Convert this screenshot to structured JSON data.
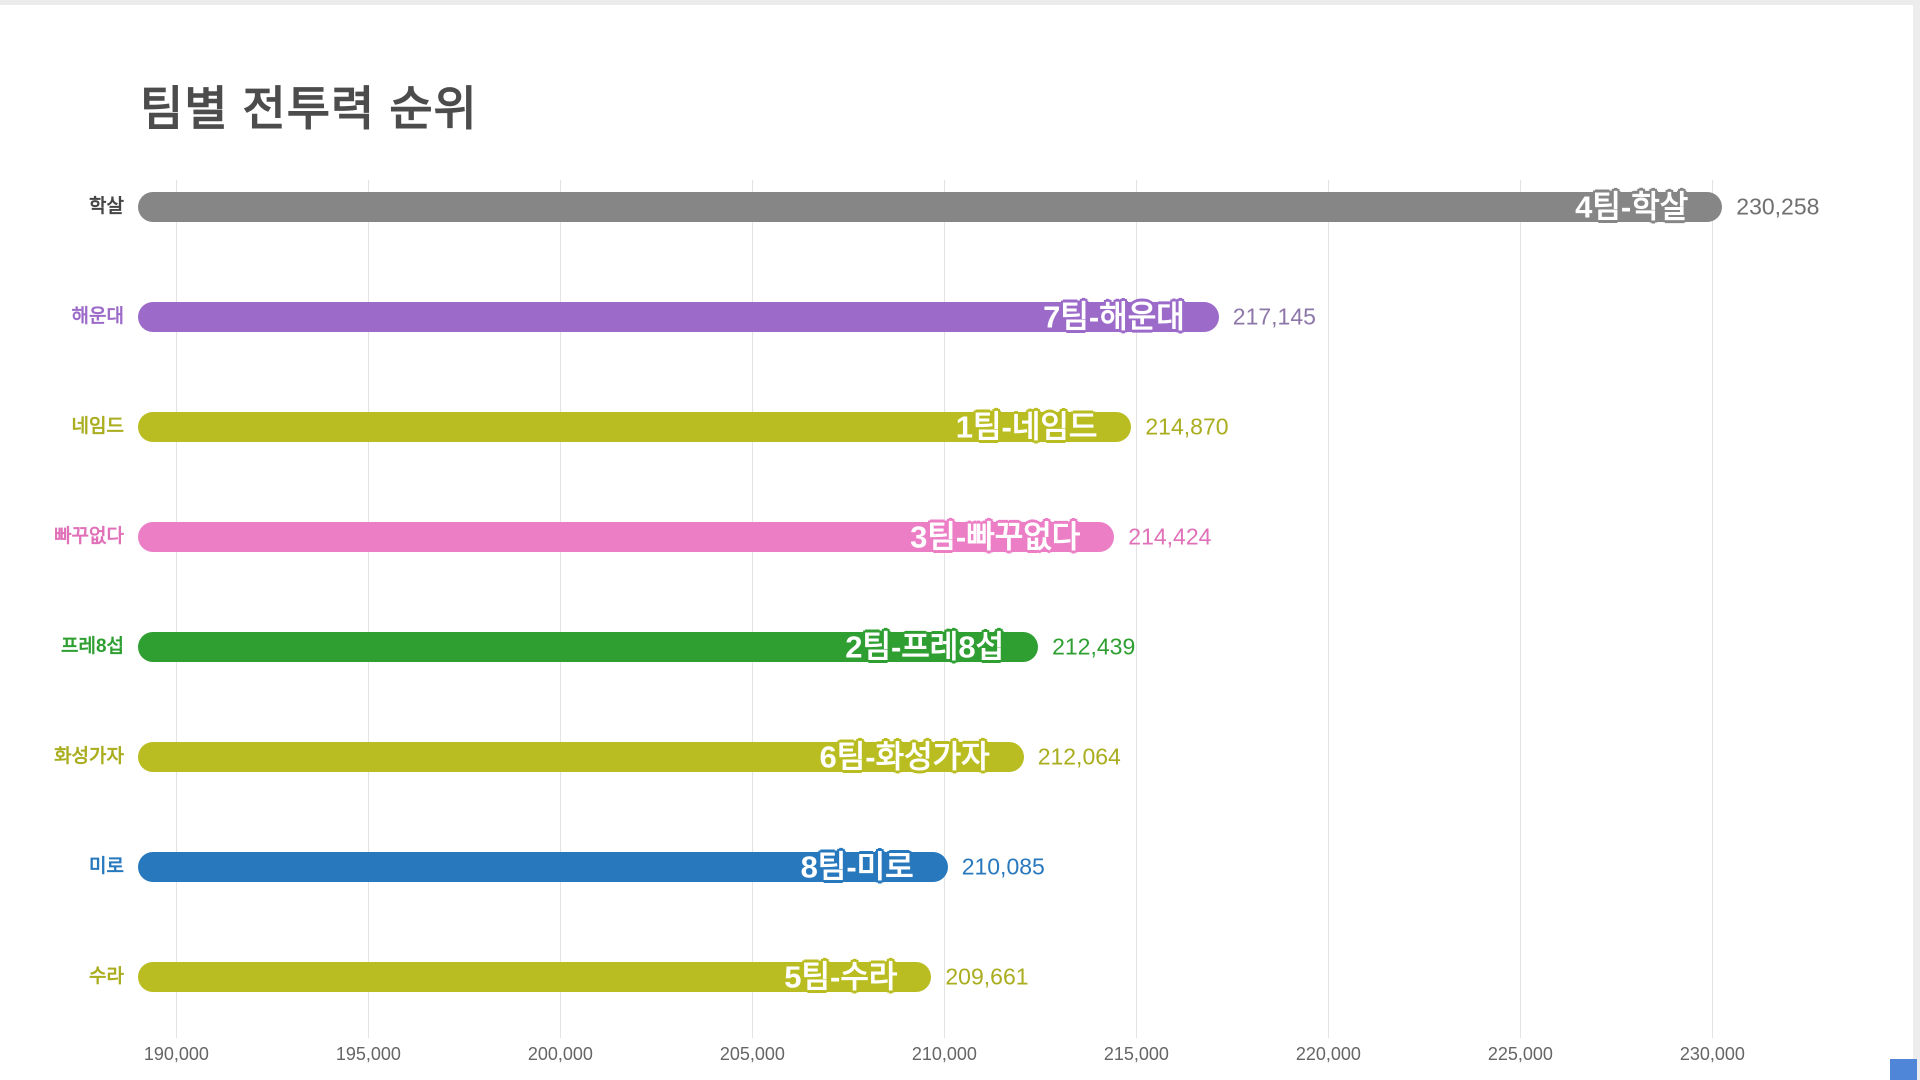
{
  "title": "팀별 전투력 순위",
  "chart_data": {
    "type": "bar",
    "orientation": "horizontal",
    "title": "팀별 전투력 순위",
    "grid": true,
    "x_axis": {
      "min": 189000,
      "max": 232000,
      "ticks": [
        190000,
        195000,
        200000,
        205000,
        210000,
        215000,
        220000,
        225000,
        230000
      ],
      "tick_labels": [
        "190,000",
        "195,000",
        "200,000",
        "205,000",
        "210,000",
        "215,000",
        "220,000",
        "225,000",
        "230,000"
      ]
    },
    "bars": [
      {
        "category": "학살",
        "bar_label": "4팀-학살",
        "value": 230258,
        "value_label": "230,258",
        "color": "#868686",
        "text_color": "#6f6f6f",
        "category_color": "#454545"
      },
      {
        "category": "해운대",
        "bar_label": "7팀-해운대",
        "value": 217145,
        "value_label": "217,145",
        "color": "#9c6bc9",
        "text_color": "#8d77a9",
        "category_color": "#9c6bc9"
      },
      {
        "category": "네임드",
        "bar_label": "1팀-네임드",
        "value": 214870,
        "value_label": "214,870",
        "color": "#b9bd21",
        "text_color": "#a9ad1e",
        "category_color": "#a9ad1e"
      },
      {
        "category": "빠꾸없다",
        "bar_label": "3팀-빠꾸없다",
        "value": 214424,
        "value_label": "214,424",
        "color": "#ec7ec6",
        "text_color": "#e070b8",
        "category_color": "#e070b8"
      },
      {
        "category": "프레8섭",
        "bar_label": "2팀-프레8섭",
        "value": 212439,
        "value_label": "212,439",
        "color": "#2f9f32",
        "text_color": "#2f9f32",
        "category_color": "#2f9f32"
      },
      {
        "category": "화성가자",
        "bar_label": "6팀-화성가자",
        "value": 212064,
        "value_label": "212,064",
        "color": "#b9bd21",
        "text_color": "#a9ad1e",
        "category_color": "#a9ad1e"
      },
      {
        "category": "미로",
        "bar_label": "8팀-미로",
        "value": 210085,
        "value_label": "210,085",
        "color": "#2878bd",
        "text_color": "#2878bd",
        "category_color": "#2878bd"
      },
      {
        "category": "수라",
        "bar_label": "5팀-수라",
        "value": 209661,
        "value_label": "209,661",
        "color": "#b9bd21",
        "text_color": "#a9ad1e",
        "category_color": "#a9ad1e"
      }
    ]
  },
  "decorations": {
    "corner_widget_color": "#4f86d8"
  }
}
